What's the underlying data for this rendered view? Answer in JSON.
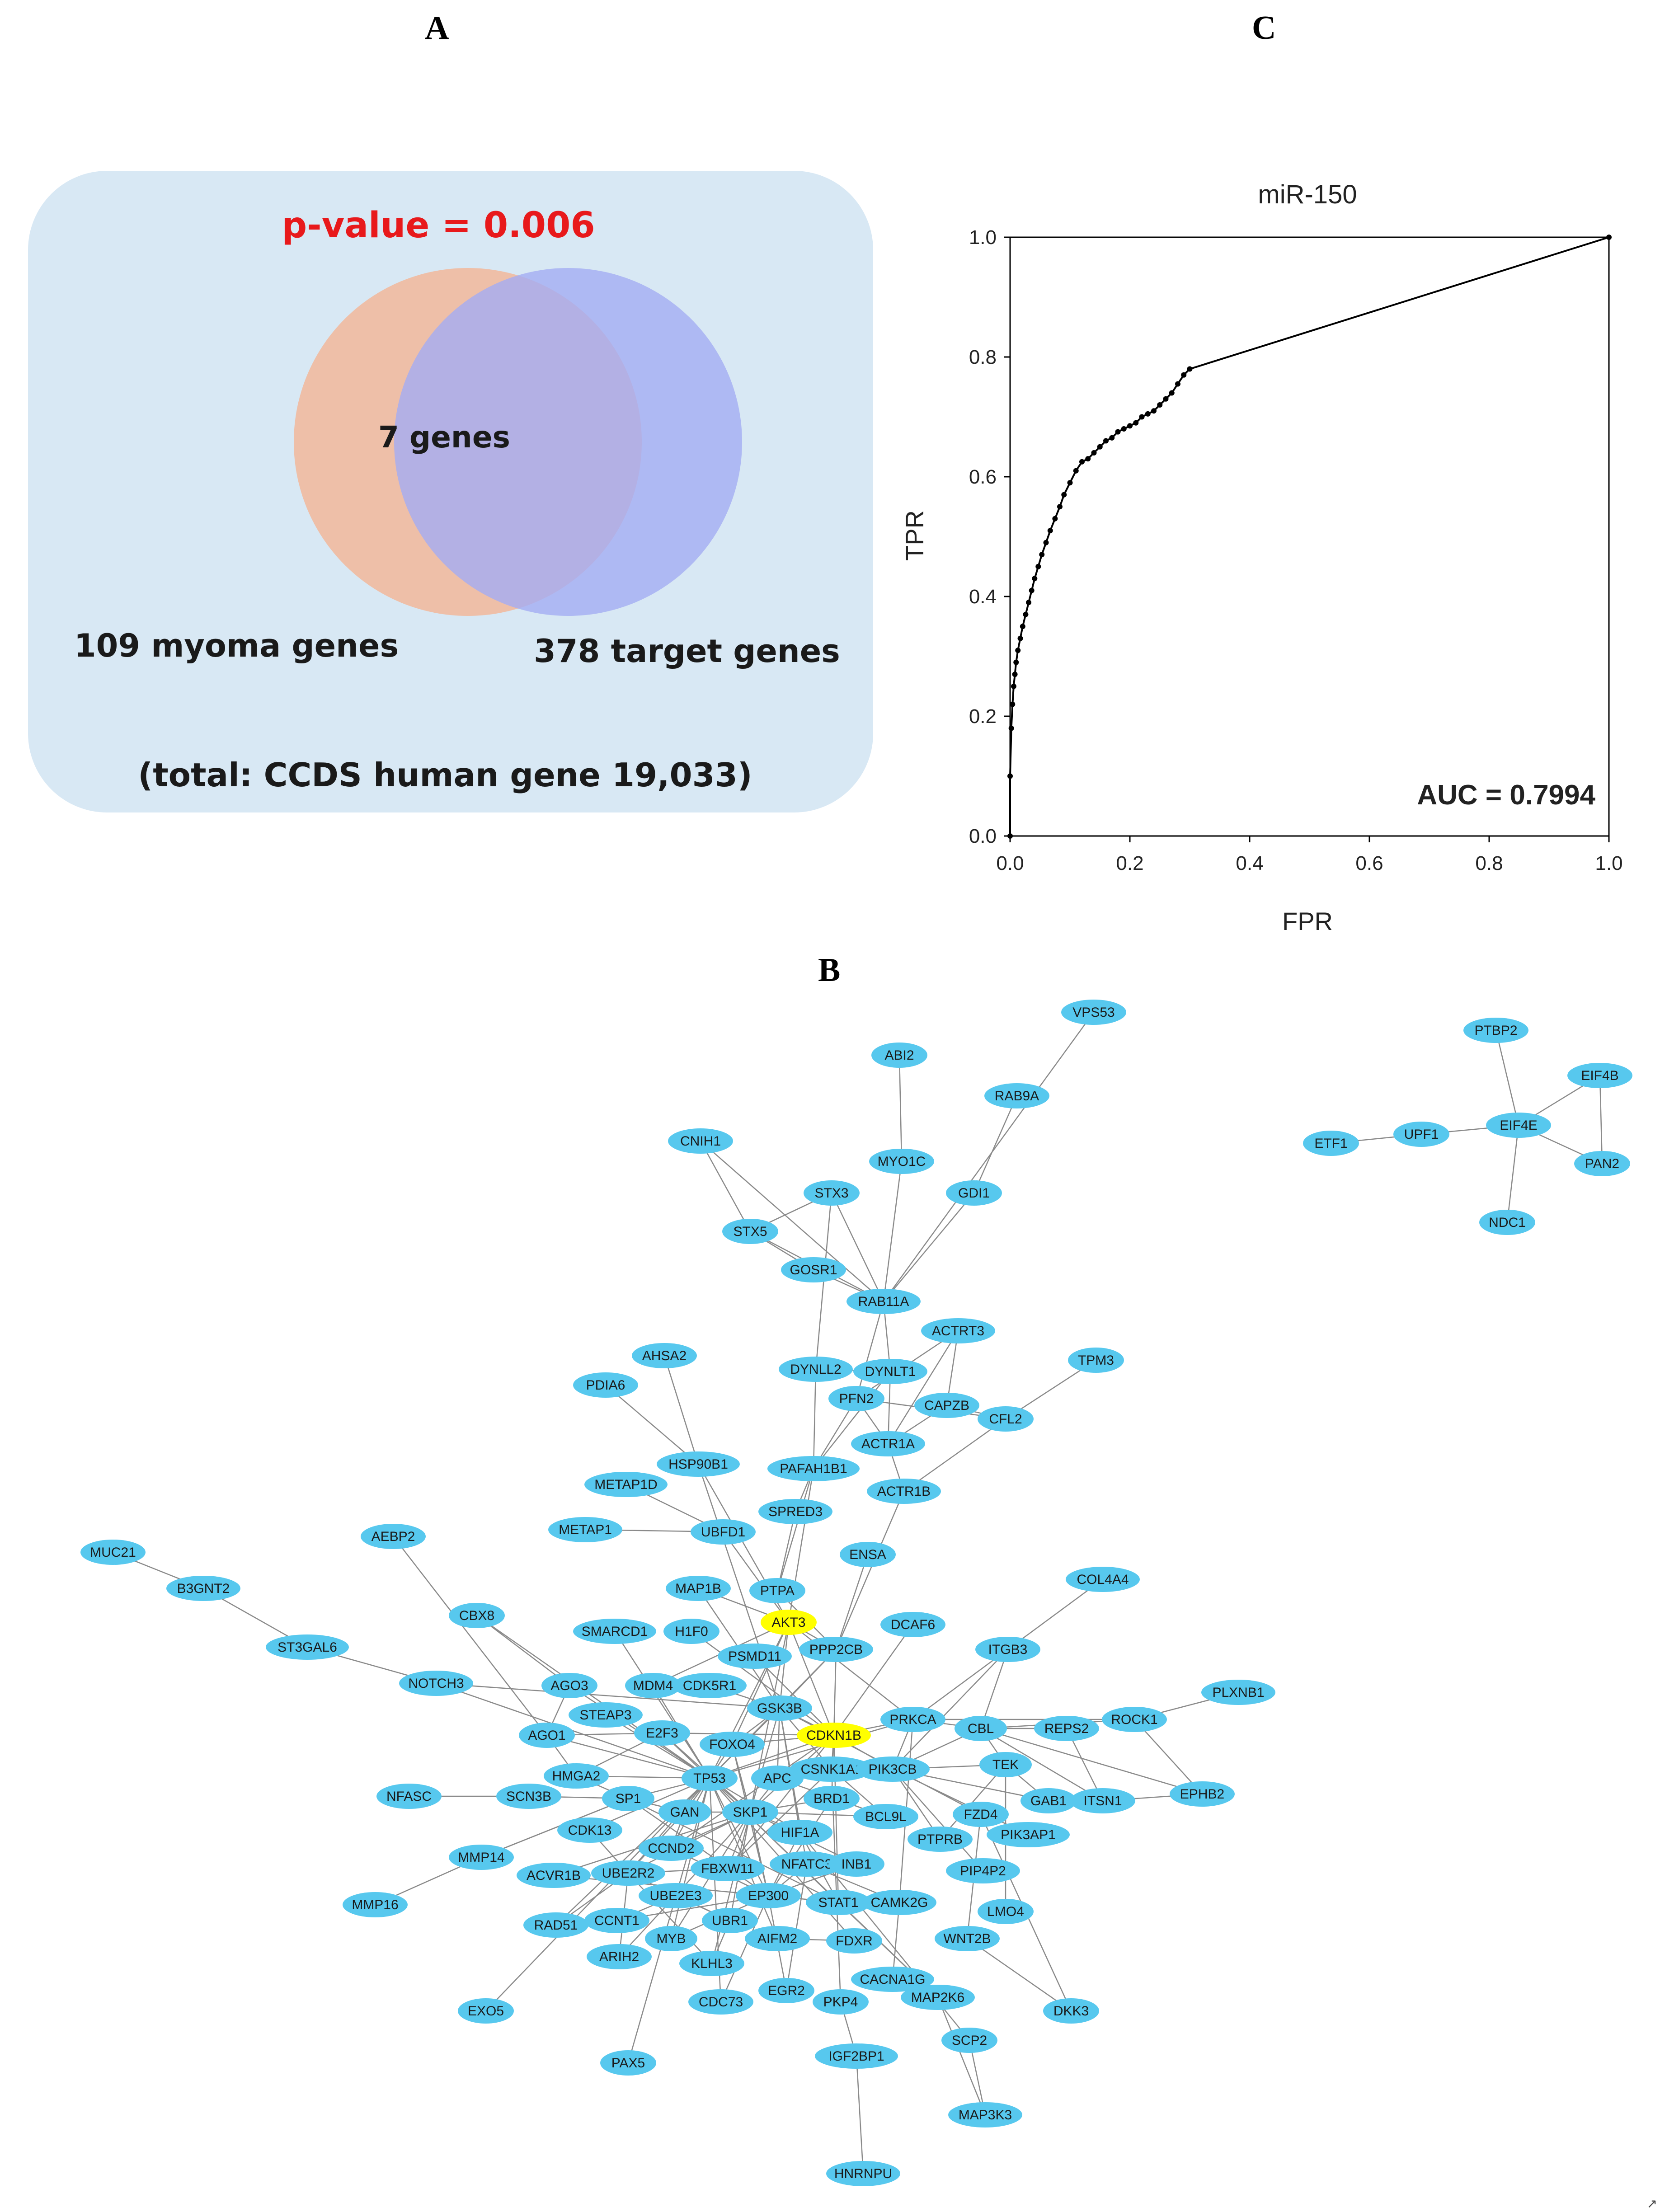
{
  "panels": {
    "a": "A",
    "b": "B",
    "c": "C"
  },
  "venn": {
    "pvalue": "p-value = 0.006",
    "overlap": "7 genes",
    "left": "109 myoma genes",
    "right": "378 target genes",
    "total": "(total: CCDS human gene 19,033)",
    "colors": {
      "bg": "#d8e8f4",
      "left": "#f2b79a",
      "right": "#a4acf2",
      "pvalue": "#e8191b"
    }
  },
  "chart_data": {
    "type": "line",
    "title": "miR-150",
    "xlabel": "FPR",
    "ylabel": "TPR",
    "xlim": [
      0,
      1
    ],
    "ylim": [
      0,
      1
    ],
    "xticks": [
      "0.0",
      "0.2",
      "0.4",
      "0.6",
      "0.8",
      "1.0"
    ],
    "yticks": [
      "0.0",
      "0.2",
      "0.4",
      "0.6",
      "0.8",
      "1.0"
    ],
    "annotation": "AUC = 0.7994",
    "series": [
      {
        "name": "miR-150",
        "x": [
          0,
          0,
          0.002,
          0.004,
          0.006,
          0.008,
          0.01,
          0.013,
          0.017,
          0.021,
          0.026,
          0.031,
          0.036,
          0.041,
          0.047,
          0.053,
          0.06,
          0.067,
          0.075,
          0.083,
          0.09,
          0.1,
          0.11,
          0.12,
          0.13,
          0.14,
          0.15,
          0.16,
          0.17,
          0.18,
          0.19,
          0.2,
          0.21,
          0.22,
          0.23,
          0.24,
          0.25,
          0.26,
          0.27,
          0.28,
          0.29,
          0.3,
          1.0
        ],
        "y": [
          0,
          0.1,
          0.18,
          0.22,
          0.25,
          0.27,
          0.29,
          0.31,
          0.33,
          0.35,
          0.37,
          0.39,
          0.41,
          0.43,
          0.45,
          0.47,
          0.49,
          0.51,
          0.53,
          0.55,
          0.57,
          0.59,
          0.61,
          0.625,
          0.63,
          0.64,
          0.65,
          0.66,
          0.665,
          0.675,
          0.68,
          0.685,
          0.69,
          0.7,
          0.705,
          0.71,
          0.72,
          0.73,
          0.74,
          0.755,
          0.77,
          0.78,
          1.0
        ]
      }
    ]
  },
  "network": {
    "node_color": "#57c8ee",
    "highlight_color": "#ffff00",
    "highlight": [
      "AKT3",
      "CDKN1B"
    ],
    "nodes": [
      "VPS53",
      "ABI2",
      "RAB9A",
      "CNIH1",
      "MYO1C",
      "STX3",
      "GDI1",
      "STX5",
      "GOSR1",
      "RAB11A",
      "ACTRT3",
      "TPM3",
      "AHSA2",
      "DYNLL2",
      "DYNLT1",
      "PDIA6",
      "PFN2",
      "CAPZB",
      "CFL2",
      "ACTR1A",
      "HSP90B1",
      "PAFAH1B1",
      "METAP1D",
      "ACTR1B",
      "SPRED3",
      "METAP1",
      "UBFD1",
      "MUC21",
      "AEBP2",
      "ENSA",
      "COL4A4",
      "B3GNT2",
      "MAP1B",
      "PTPA",
      "CBX8",
      "DCAF6",
      "AKT3",
      "SMARCD1",
      "H1F0",
      "ST3GAL6",
      "PPP2CB",
      "ITGB3",
      "PSMD11",
      "NOTCH3",
      "AGO3",
      "MDM4",
      "CDK5R1",
      "PLXNB1",
      "GSK3B",
      "PRKCA",
      "STEAP3",
      "CBL",
      "REPS2",
      "ROCK1",
      "AGO1",
      "E2F3",
      "FOXO4",
      "CDKN1B",
      "CSNK1A1",
      "PIK3CB",
      "TEK",
      "HMGA2",
      "TP53",
      "APC",
      "EPHB2",
      "NFASC",
      "SCN3B",
      "SP1",
      "GAN",
      "SKP1",
      "BRD1",
      "GAB1",
      "ITSN1",
      "FZD4",
      "BCL9L",
      "CDK13",
      "HIF1A",
      "PIK3AP1",
      "CCND2",
      "PTPRB",
      "MMP14",
      "ACVR1B",
      "UBE2R2",
      "FBXW11",
      "NFATC3",
      "INB1",
      "PIP4P2",
      "UBE2E3",
      "EP300",
      "STAT1",
      "CAMK2G",
      "MMP16",
      "LMO4",
      "RAD51",
      "CCNT1",
      "UBR1",
      "MYB",
      "AIFM2",
      "FDXR",
      "WNT2B",
      "ARIH2",
      "KLHL3",
      "CACNA1G",
      "EGR2",
      "MAP2K6",
      "EXO5",
      "CDC73",
      "PKP4",
      "DKK3",
      "SCP2",
      "IGF2BP1",
      "PAX5",
      "MAP3K3",
      "HNRNPU",
      "PTBP2",
      "EIF4B",
      "ETF1",
      "UPF1",
      "EIF4E",
      "PAN2",
      "NDC1"
    ]
  }
}
